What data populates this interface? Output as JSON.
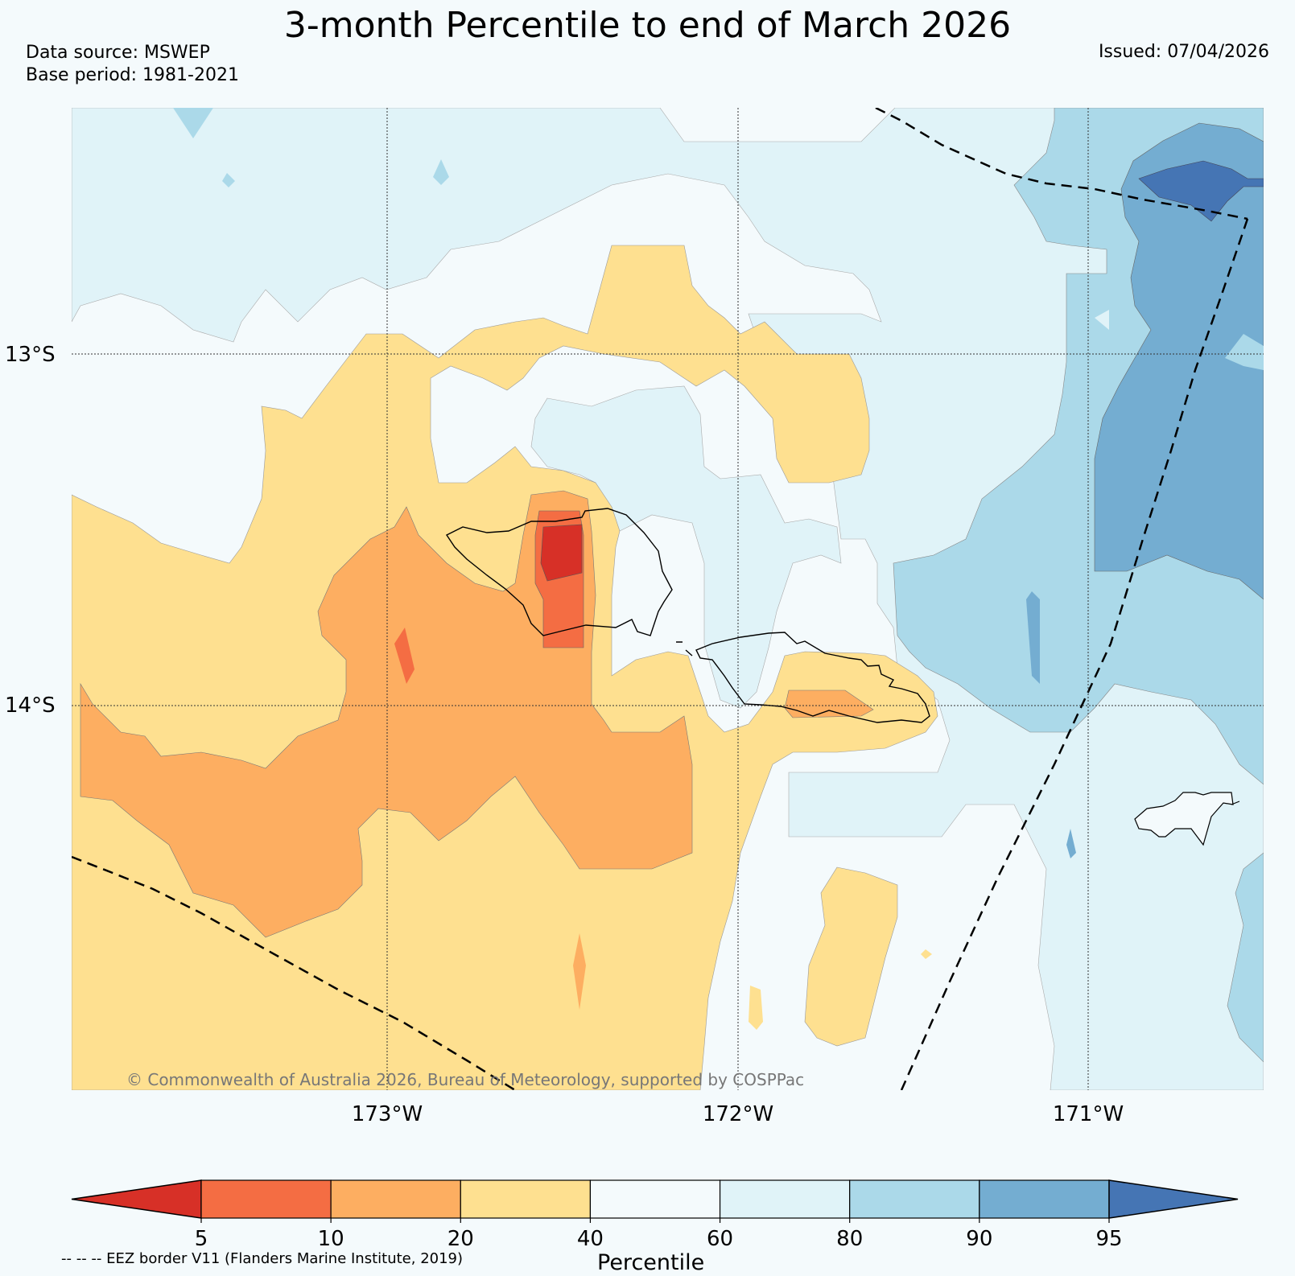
{
  "title": "3-month Percentile to end of March 2026",
  "data_source": "Data source: MSWEP",
  "base_period": "Base period: 1981-2021",
  "issued": "Issued: 07/04/2026",
  "lat_labels": [
    "13°S",
    "14°S"
  ],
  "lon_labels": [
    "173°W",
    "172°W",
    "171°W"
  ],
  "credit": "© Commonwealth of Australia 2026, Bureau of Meteorology, supported by COSPPac",
  "colorbar": {
    "title": "Percentile",
    "ticks": [
      "5",
      "10",
      "20",
      "40",
      "60",
      "80",
      "90",
      "95"
    ],
    "colors": [
      "#d73027",
      "#f46d43",
      "#fdae61",
      "#fee090",
      "#f4fafc",
      "#e0f3f8",
      "#abd9e9",
      "#74add1",
      "#4575b4"
    ]
  },
  "eez_note": "-- -- -- EEZ border V11 (Flanders Marine Institute, 2019)"
}
